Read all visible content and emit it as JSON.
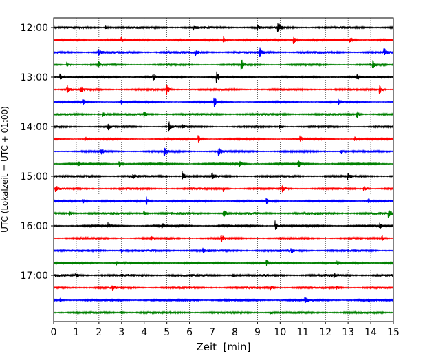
{
  "chart_data": {
    "type": "line",
    "title": "",
    "xlabel": "Zeit  [min]",
    "ylabel": "UTC (Lokalzeit = UTC + 01:00)",
    "xlim": [
      0,
      15
    ],
    "x_ticks": [
      "0",
      "1",
      "2",
      "3",
      "4",
      "5",
      "6",
      "7",
      "8",
      "9",
      "10",
      "11",
      "12",
      "13",
      "14",
      "15"
    ],
    "y_ticks": [
      "12:00",
      "13:00",
      "14:00",
      "15:00",
      "16:00",
      "17:00"
    ],
    "y_tick_traces": [
      0,
      4,
      8,
      12,
      16,
      20
    ],
    "grid": "vertical dotted",
    "trace_count": 24,
    "trace_interval_minutes": 15,
    "trace_colors": [
      "#000000",
      "#ff0000",
      "#0000ff",
      "#008000"
    ],
    "events": [
      {
        "trace": 0,
        "x": 2.3,
        "amp": 0.35
      },
      {
        "trace": 0,
        "x": 6.2,
        "amp": 0.3
      },
      {
        "trace": 0,
        "x": 9.0,
        "amp": 0.3
      },
      {
        "trace": 0,
        "x": 9.9,
        "amp": 1.0
      },
      {
        "trace": 1,
        "x": 3.0,
        "amp": 0.35
      },
      {
        "trace": 1,
        "x": 7.5,
        "amp": 0.55
      },
      {
        "trace": 1,
        "x": 10.6,
        "amp": 0.6
      },
      {
        "trace": 1,
        "x": 13.1,
        "amp": 0.5
      },
      {
        "trace": 2,
        "x": 2.0,
        "amp": 0.5
      },
      {
        "trace": 2,
        "x": 6.3,
        "amp": 0.4
      },
      {
        "trace": 2,
        "x": 9.1,
        "amp": 0.75
      },
      {
        "trace": 2,
        "x": 14.6,
        "amp": 0.6
      },
      {
        "trace": 3,
        "x": 0.6,
        "amp": 0.45
      },
      {
        "trace": 3,
        "x": 2.0,
        "amp": 0.45
      },
      {
        "trace": 3,
        "x": 8.3,
        "amp": 0.85
      },
      {
        "trace": 3,
        "x": 14.1,
        "amp": 0.6
      },
      {
        "trace": 4,
        "x": 0.3,
        "amp": 0.6
      },
      {
        "trace": 4,
        "x": 4.4,
        "amp": 0.45
      },
      {
        "trace": 4,
        "x": 7.2,
        "amp": 0.85
      },
      {
        "trace": 4,
        "x": 13.4,
        "amp": 0.5
      },
      {
        "trace": 5,
        "x": 0.6,
        "amp": 0.7
      },
      {
        "trace": 5,
        "x": 1.2,
        "amp": 0.5
      },
      {
        "trace": 5,
        "x": 5.0,
        "amp": 0.75
      },
      {
        "trace": 5,
        "x": 14.4,
        "amp": 0.7
      },
      {
        "trace": 6,
        "x": 1.3,
        "amp": 0.4
      },
      {
        "trace": 6,
        "x": 3.0,
        "amp": 0.35
      },
      {
        "trace": 6,
        "x": 7.1,
        "amp": 0.8
      },
      {
        "trace": 6,
        "x": 12.6,
        "amp": 0.45
      },
      {
        "trace": 7,
        "x": 2.2,
        "amp": 0.4
      },
      {
        "trace": 7,
        "x": 4.0,
        "amp": 0.7
      },
      {
        "trace": 7,
        "x": 13.4,
        "amp": 0.6
      },
      {
        "trace": 8,
        "x": 2.4,
        "amp": 0.55
      },
      {
        "trace": 8,
        "x": 5.1,
        "amp": 0.75
      },
      {
        "trace": 8,
        "x": 5.7,
        "amp": 0.55
      },
      {
        "trace": 8,
        "x": 10.0,
        "amp": 0.45
      },
      {
        "trace": 9,
        "x": 1.4,
        "amp": 0.45
      },
      {
        "trace": 9,
        "x": 6.4,
        "amp": 0.6
      },
      {
        "trace": 9,
        "x": 10.9,
        "amp": 0.5
      },
      {
        "trace": 9,
        "x": 13.3,
        "amp": 0.5
      },
      {
        "trace": 10,
        "x": 2.1,
        "amp": 0.5
      },
      {
        "trace": 10,
        "x": 4.9,
        "amp": 0.65
      },
      {
        "trace": 10,
        "x": 7.3,
        "amp": 0.7
      },
      {
        "trace": 10,
        "x": 12.7,
        "amp": 0.45
      },
      {
        "trace": 11,
        "x": 1.1,
        "amp": 0.45
      },
      {
        "trace": 11,
        "x": 2.9,
        "amp": 0.6
      },
      {
        "trace": 11,
        "x": 8.2,
        "amp": 0.55
      },
      {
        "trace": 11,
        "x": 10.8,
        "amp": 0.6
      },
      {
        "trace": 12,
        "x": 3.5,
        "amp": 0.5
      },
      {
        "trace": 12,
        "x": 5.7,
        "amp": 0.75
      },
      {
        "trace": 12,
        "x": 7.0,
        "amp": 0.55
      },
      {
        "trace": 12,
        "x": 13.0,
        "amp": 0.5
      },
      {
        "trace": 13,
        "x": 0.1,
        "amp": 0.55
      },
      {
        "trace": 13,
        "x": 7.5,
        "amp": 0.5
      },
      {
        "trace": 13,
        "x": 10.1,
        "amp": 0.7
      },
      {
        "trace": 13,
        "x": 13.7,
        "amp": 0.5
      },
      {
        "trace": 14,
        "x": 1.3,
        "amp": 0.4
      },
      {
        "trace": 14,
        "x": 4.1,
        "amp": 0.7
      },
      {
        "trace": 14,
        "x": 9.4,
        "amp": 0.5
      },
      {
        "trace": 14,
        "x": 13.9,
        "amp": 0.5
      },
      {
        "trace": 15,
        "x": 0.7,
        "amp": 0.45
      },
      {
        "trace": 15,
        "x": 4.0,
        "amp": 0.45
      },
      {
        "trace": 15,
        "x": 7.5,
        "amp": 0.9
      },
      {
        "trace": 15,
        "x": 14.8,
        "amp": 0.6
      },
      {
        "trace": 16,
        "x": 2.4,
        "amp": 0.45
      },
      {
        "trace": 16,
        "x": 4.8,
        "amp": 0.45
      },
      {
        "trace": 16,
        "x": 9.8,
        "amp": 0.9
      },
      {
        "trace": 16,
        "x": 14.4,
        "amp": 0.45
      },
      {
        "trace": 17,
        "x": 4.3,
        "amp": 0.35
      },
      {
        "trace": 17,
        "x": 7.4,
        "amp": 0.7
      },
      {
        "trace": 17,
        "x": 14.5,
        "amp": 0.45
      },
      {
        "trace": 18,
        "x": 3.0,
        "amp": 0.3
      },
      {
        "trace": 18,
        "x": 6.6,
        "amp": 0.3
      },
      {
        "trace": 18,
        "x": 10.5,
        "amp": 0.3
      },
      {
        "trace": 19,
        "x": 2.8,
        "amp": 0.3
      },
      {
        "trace": 19,
        "x": 9.4,
        "amp": 0.45
      },
      {
        "trace": 19,
        "x": 12.5,
        "amp": 0.3
      },
      {
        "trace": 20,
        "x": 1.0,
        "amp": 0.3
      },
      {
        "trace": 20,
        "x": 7.9,
        "amp": 0.35
      },
      {
        "trace": 20,
        "x": 12.4,
        "amp": 0.3
      },
      {
        "trace": 21,
        "x": 2.6,
        "amp": 0.3
      },
      {
        "trace": 21,
        "x": 9.6,
        "amp": 0.35
      },
      {
        "trace": 21,
        "x": 12.5,
        "amp": 0.3
      },
      {
        "trace": 22,
        "x": 0.3,
        "amp": 0.35
      },
      {
        "trace": 22,
        "x": 6.2,
        "amp": 0.3
      },
      {
        "trace": 22,
        "x": 11.1,
        "amp": 0.6
      },
      {
        "trace": 22,
        "x": 13.9,
        "amp": 0.3
      },
      {
        "trace": 23,
        "x": 3.0,
        "amp": 0.2
      },
      {
        "trace": 23,
        "x": 9.6,
        "amp": 0.2
      }
    ]
  }
}
